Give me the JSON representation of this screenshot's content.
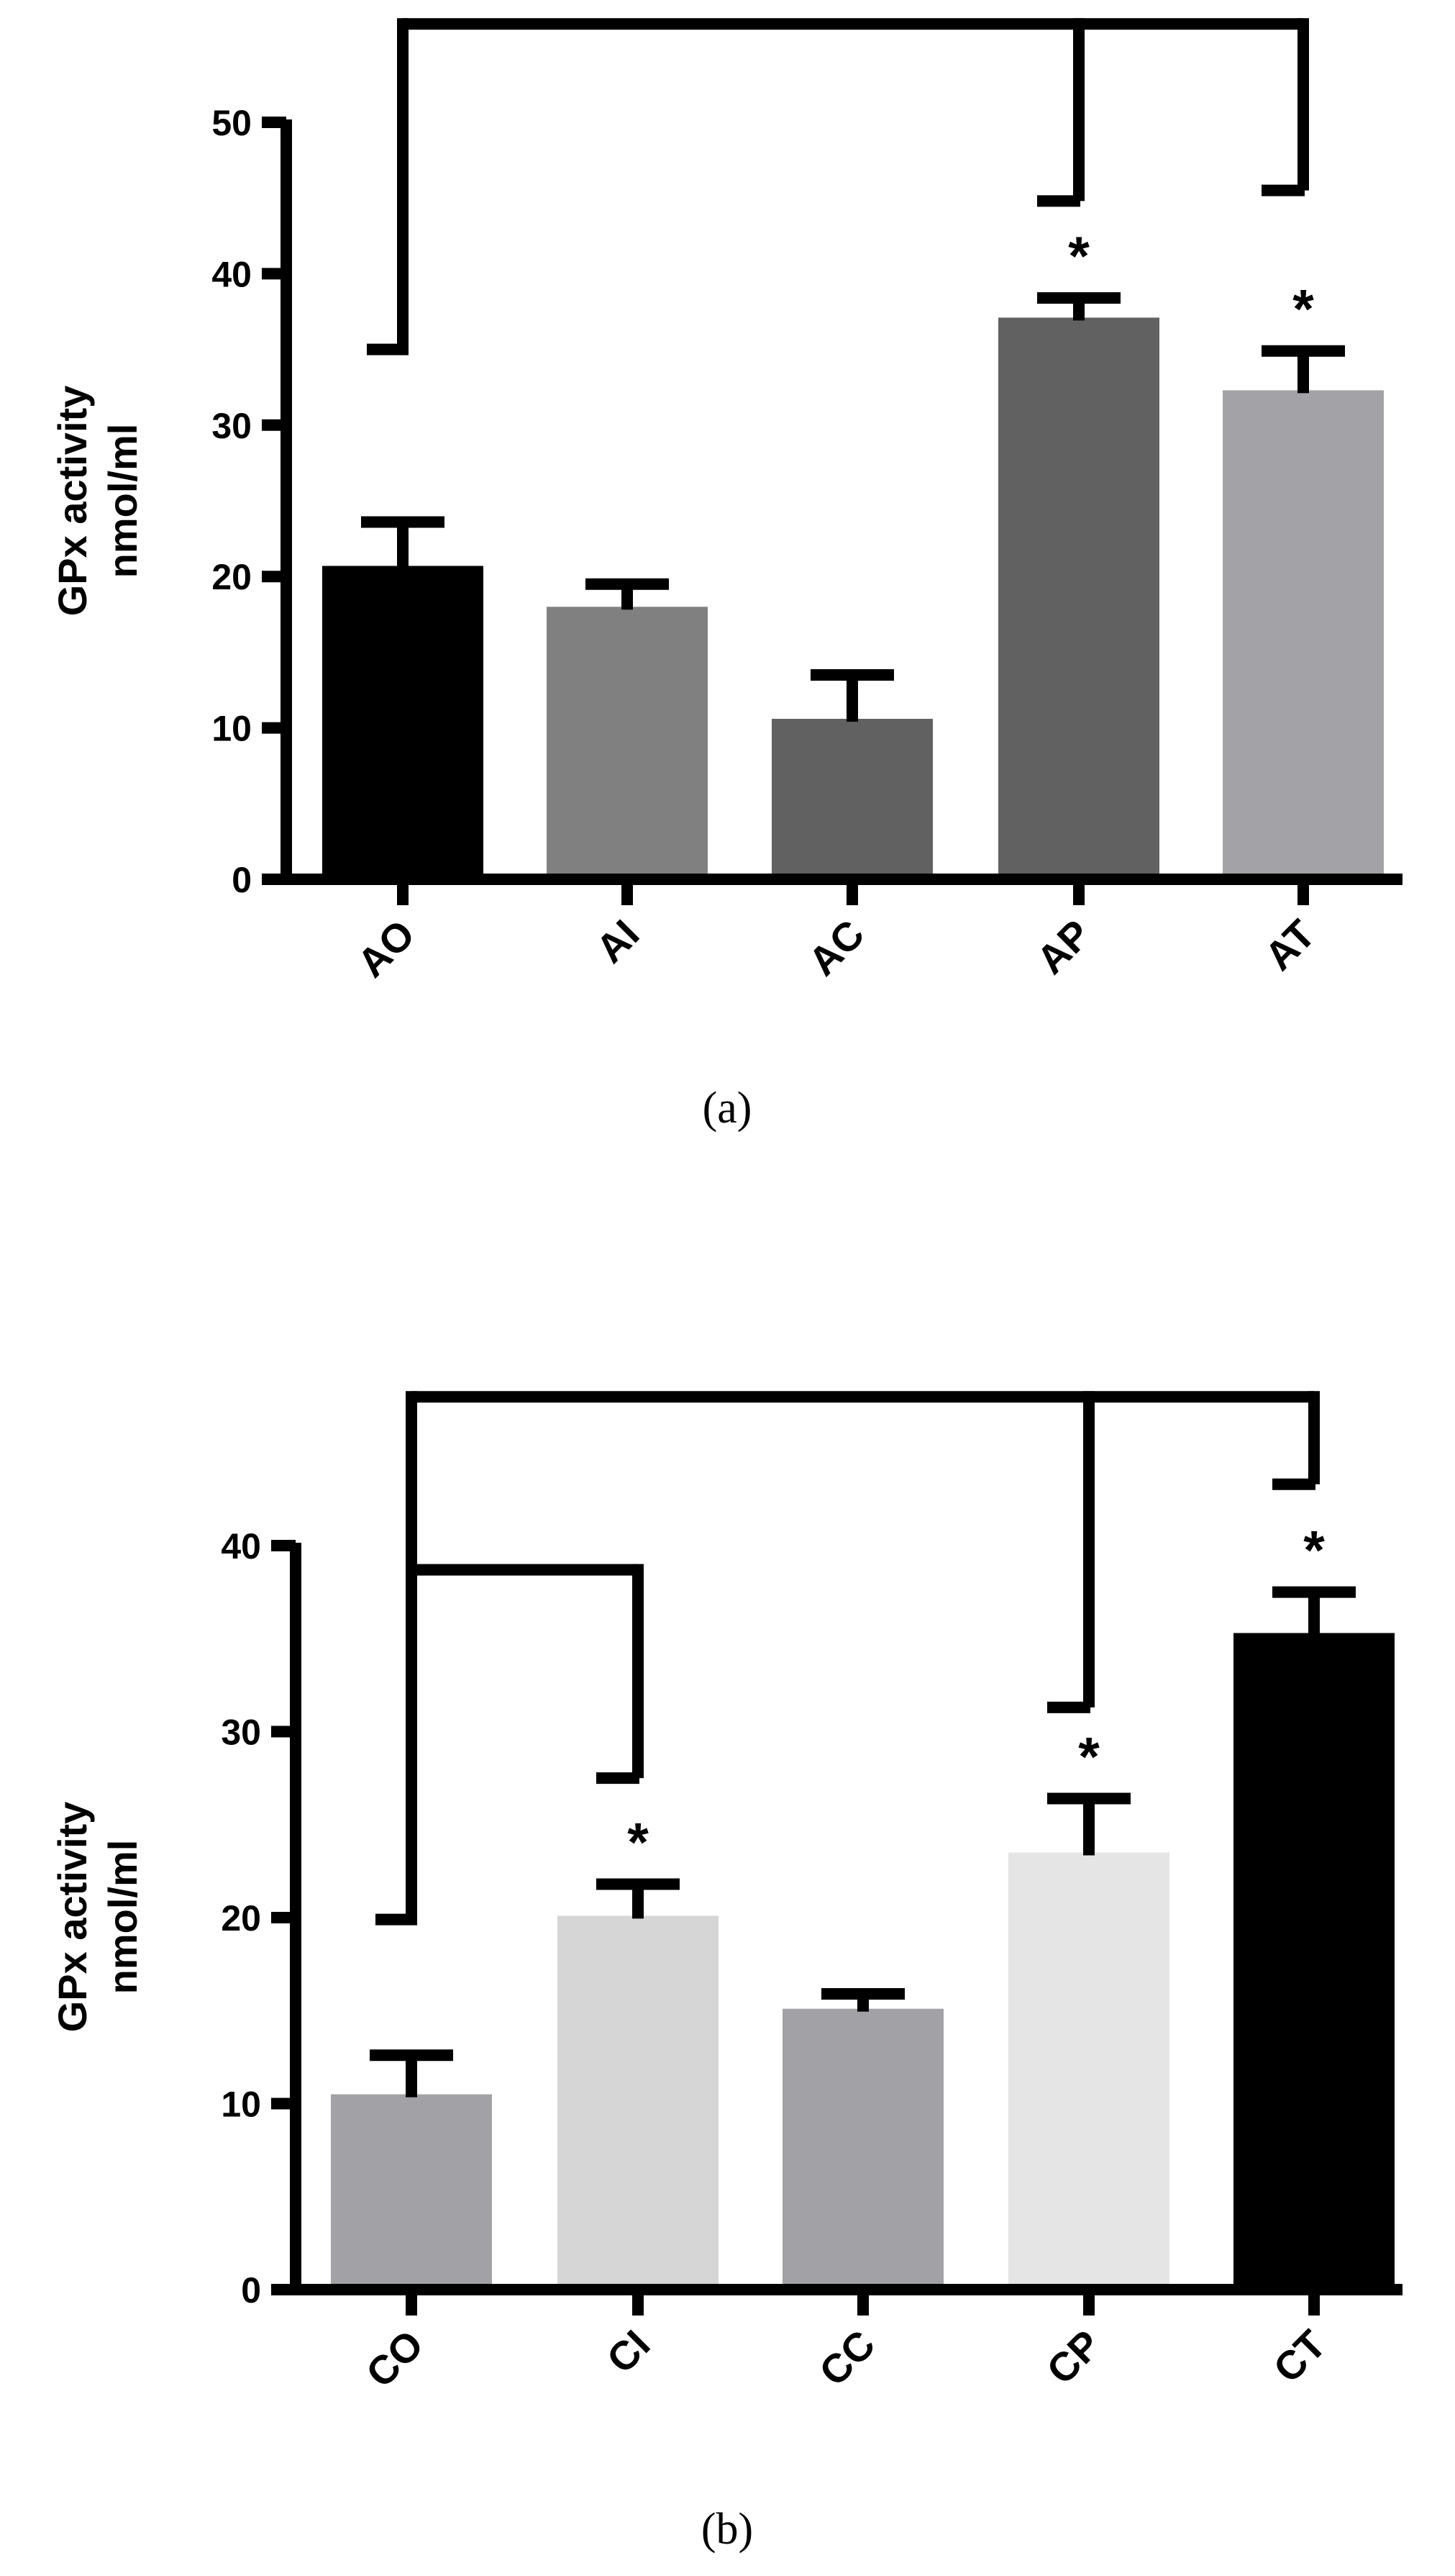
{
  "chart_data": [
    {
      "type": "bar",
      "panel_label": "(a)",
      "ylabel_lines": [
        "GPx activity",
        "nmol/ml"
      ],
      "categories": [
        "AO",
        "AI",
        "AC",
        "AP",
        "AT"
      ],
      "values": [
        20.7,
        18.0,
        10.6,
        37.1,
        32.3
      ],
      "error_plus": [
        2.9,
        1.5,
        2.9,
        1.3,
        2.6
      ],
      "colors": [
        "#000000",
        "#808080",
        "#616161",
        "#616161",
        "#a3a3a7"
      ],
      "ylim": [
        0,
        50
      ],
      "yticks": [
        0,
        10,
        20,
        30,
        40,
        50
      ],
      "significance_marks": [
        {
          "category": "AP",
          "label": "*"
        },
        {
          "category": "AT",
          "label": "*"
        }
      ],
      "comparison_brackets": {
        "from": "AO",
        "to": [
          "AP",
          "AT"
        ],
        "line_value": 56.5,
        "from_end_value": 35.0,
        "to_end_values": [
          44.8,
          45.5
        ]
      }
    },
    {
      "type": "bar",
      "panel_label": "(b)",
      "ylabel_lines": [
        "GPx activity",
        "nmol/ml"
      ],
      "categories": [
        "CO",
        "CI",
        "CC",
        "CP",
        "CT"
      ],
      "values": [
        10.5,
        20.1,
        15.1,
        23.5,
        35.3
      ],
      "error_plus": [
        2.1,
        1.7,
        0.8,
        2.9,
        2.2
      ],
      "colors": [
        "#a2a2a6",
        "#d6d6d6",
        "#a2a2a6",
        "#e5e5e5",
        "#000000"
      ],
      "ylim": [
        0,
        40
      ],
      "yticks": [
        0,
        10,
        20,
        30,
        40
      ],
      "significance_marks": [
        {
          "category": "CI",
          "label": "*"
        },
        {
          "category": "CP",
          "label": "*"
        },
        {
          "category": "CT",
          "label": "*"
        }
      ],
      "comparison_brackets": {
        "from": "CO",
        "to_top": [
          "CP",
          "CT"
        ],
        "top_line_value": 48.0,
        "top_end_values": [
          31.3,
          43.3
        ],
        "to_inner": [
          "CI"
        ],
        "inner_line_value": 38.7,
        "inner_end_values": [
          27.5
        ],
        "from_end_value": 19.9
      }
    }
  ]
}
